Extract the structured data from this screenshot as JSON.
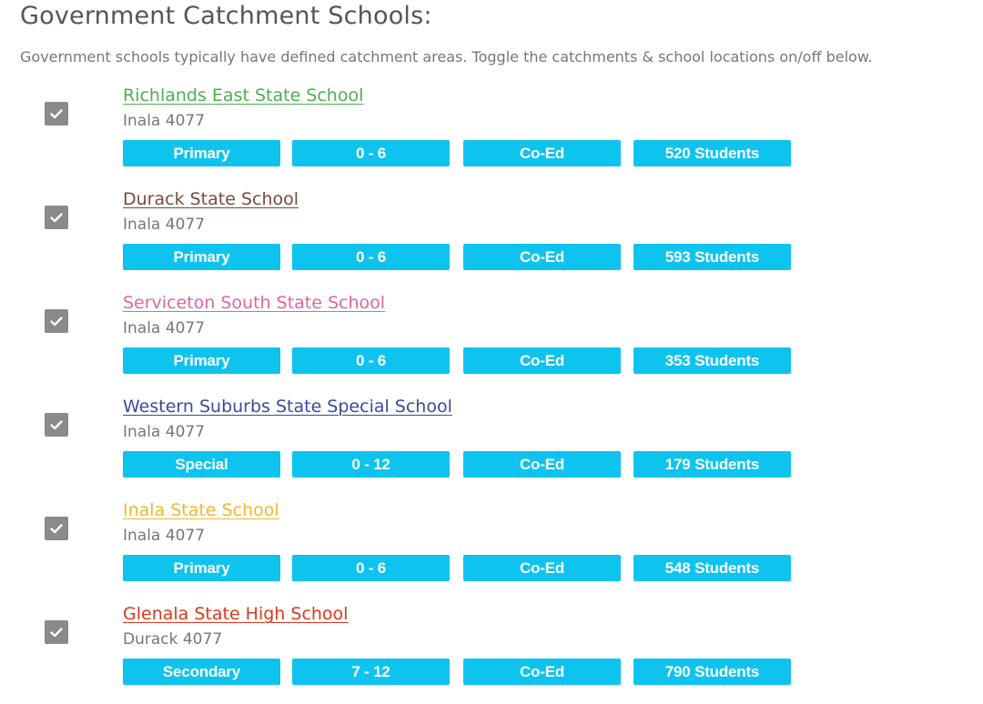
{
  "header": {
    "title": "Government Catchment Schools:",
    "intro": "Government schools typically have defined catchment areas. Toggle the catchments & school locations on/off below."
  },
  "icons": {
    "toggle": "checkmark-icon"
  },
  "schools": [
    {
      "name": "Richlands East State School",
      "color": "#4caf50",
      "suburb": "Inala 4077",
      "checked": true,
      "type": "Primary",
      "years": "0 - 6",
      "gender": "Co-Ed",
      "students": "520 Students"
    },
    {
      "name": "Durack State School",
      "color": "#7b4a3a",
      "suburb": "Inala 4077",
      "checked": true,
      "type": "Primary",
      "years": "0 - 6",
      "gender": "Co-Ed",
      "students": "593 Students"
    },
    {
      "name": "Serviceton South State School",
      "color": "#e0669a",
      "suburb": "Inala 4077",
      "checked": true,
      "type": "Primary",
      "years": "0 - 6",
      "gender": "Co-Ed",
      "students": "353 Students"
    },
    {
      "name": "Western Suburbs State Special School",
      "color": "#3a4a9e",
      "suburb": "Inala 4077",
      "checked": true,
      "type": "Special",
      "years": "0 - 12",
      "gender": "Co-Ed",
      "students": "179 Students"
    },
    {
      "name": "Inala State School",
      "color": "#f2b632",
      "suburb": "Inala 4077",
      "checked": true,
      "type": "Primary",
      "years": "0 - 6",
      "gender": "Co-Ed",
      "students": "548 Students"
    },
    {
      "name": "Glenala State High School",
      "color": "#d9391c",
      "suburb": "Durack 4077",
      "checked": true,
      "type": "Secondary",
      "years": "7 - 12",
      "gender": "Co-Ed",
      "students": "790 Students"
    }
  ]
}
